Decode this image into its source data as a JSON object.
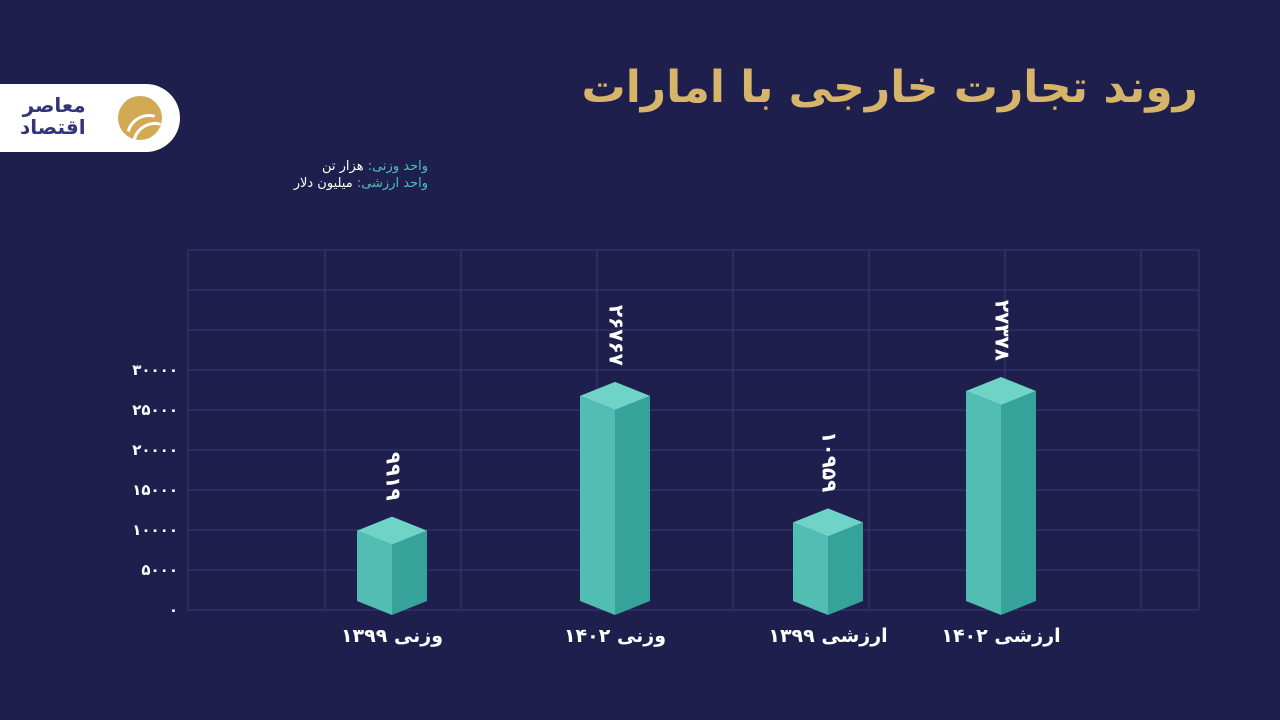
{
  "title": "روند تجارت خارجی با امارات",
  "logo_text": [
    "اقتصاد",
    "معاصر"
  ],
  "units": [
    {
      "key": "واحد وزنی:",
      "value": "هزار تن"
    },
    {
      "key": "واحد ارزشی:",
      "value": "میلیون دلار"
    }
  ],
  "colors": {
    "background": "#1f1f4d",
    "bar": "#4fc1b6",
    "title": "#d6b46a"
  },
  "chart_data": {
    "type": "bar",
    "title": "روند تجارت خارجی با امارات",
    "categories": [
      "وزنی ۱۳۹۹",
      "وزنی ۱۴۰۲",
      "ارزشی ۱۳۹۹",
      "ارزشی ۱۴۰۲"
    ],
    "values": [
      9919,
      26767,
      10959,
      27378
    ],
    "value_labels": [
      "۹۹۱۹",
      "۲۶۷۶۷",
      "۱۰۹۵۹",
      "۲۷۳۷۸"
    ],
    "yticks": [
      0,
      5000,
      10000,
      15000,
      20000,
      25000,
      30000
    ],
    "ytick_labels": [
      "۰",
      "۵۰۰۰",
      "۱۰۰۰۰",
      "۱۵۰۰۰",
      "۲۰۰۰۰",
      "۲۵۰۰۰",
      "۳۰۰۰۰"
    ],
    "ylim": [
      0,
      45000
    ],
    "grid": true,
    "xlabel": "",
    "ylabel": ""
  }
}
